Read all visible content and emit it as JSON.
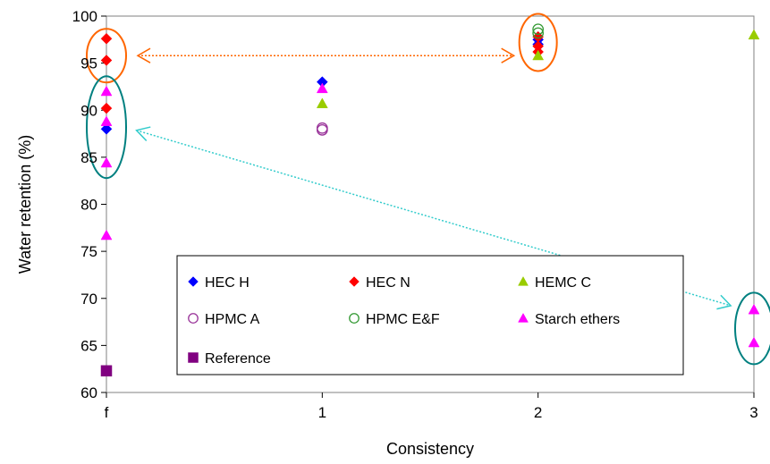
{
  "chart_data": {
    "type": "scatter",
    "xlabel": "Consistency",
    "ylabel": "Water retention (%)",
    "ylim": [
      60,
      100
    ],
    "yticks": [
      60,
      65,
      70,
      75,
      80,
      85,
      90,
      95,
      100
    ],
    "xlim": [
      0,
      3
    ],
    "xtick_labels": [
      "f",
      "1",
      "2",
      "3"
    ],
    "grid": false,
    "legend_position": "lower-center",
    "series": [
      {
        "name": "HEC H",
        "marker": "diamond",
        "color": "#0000ff",
        "filled": true,
        "points": [
          {
            "x": "f",
            "y": 88.0
          },
          {
            "x": "1",
            "y": 93.0
          },
          {
            "x": "2",
            "y": 97.0
          },
          {
            "x": "2",
            "y": 97.5
          }
        ]
      },
      {
        "name": "HEC N",
        "marker": "diamond",
        "color": "#ff0000",
        "filled": true,
        "points": [
          {
            "x": "f",
            "y": 97.6
          },
          {
            "x": "f",
            "y": 95.3
          },
          {
            "x": "f",
            "y": 90.2
          },
          {
            "x": "2",
            "y": 96.2
          },
          {
            "x": "2",
            "y": 97.8
          },
          {
            "x": "2",
            "y": 96.8
          }
        ]
      },
      {
        "name": "HEMC C",
        "marker": "triangle",
        "color": "#99cc00",
        "filled": true,
        "points": [
          {
            "x": "1",
            "y": 90.7
          },
          {
            "x": "2",
            "y": 95.8
          },
          {
            "x": "3",
            "y": 98.0
          }
        ]
      },
      {
        "name": "HPMC A",
        "marker": "circle",
        "color": "#993399",
        "filled": false,
        "points": [
          {
            "x": "1",
            "y": 88.1
          },
          {
            "x": "1",
            "y": 87.9
          }
        ]
      },
      {
        "name": "HPMC E&F",
        "marker": "circle",
        "color": "#339933",
        "filled": false,
        "points": [
          {
            "x": "2",
            "y": 98.6
          },
          {
            "x": "2",
            "y": 98.2
          }
        ]
      },
      {
        "name": "Starch ethers",
        "marker": "triangle",
        "color": "#ff00ff",
        "filled": true,
        "points": [
          {
            "x": "f",
            "y": 92.0
          },
          {
            "x": "f",
            "y": 88.8
          },
          {
            "x": "f",
            "y": 84.4
          },
          {
            "x": "f",
            "y": 76.7
          },
          {
            "x": "1",
            "y": 92.3
          },
          {
            "x": "3",
            "y": 68.8
          },
          {
            "x": "3",
            "y": 65.3
          }
        ]
      },
      {
        "name": "Reference",
        "marker": "square",
        "color": "#800080",
        "filled": true,
        "points": [
          {
            "x": "f",
            "y": 62.3
          }
        ]
      }
    ],
    "annotations": [
      {
        "type": "ellipse",
        "color": "#ff6600",
        "center": {
          "x": "f",
          "y": 95.8
        },
        "around": "HEC N at f"
      },
      {
        "type": "ellipse",
        "color": "#ff6600",
        "center": {
          "x": "2",
          "y": 97.2
        },
        "around": "cluster at 2"
      },
      {
        "type": "ellipse",
        "color": "#008080",
        "center": {
          "x": "f",
          "y": 88.2
        },
        "around": "cluster at f"
      },
      {
        "type": "ellipse",
        "color": "#008080",
        "center": {
          "x": "3",
          "y": 66.8
        },
        "around": "Starch ethers at 3"
      },
      {
        "type": "double-arrow",
        "style": "dotted",
        "color": "#ff6600",
        "from": {
          "x": "f",
          "y": 95.8
        },
        "to": {
          "x": "2",
          "y": 95.8
        }
      },
      {
        "type": "double-arrow",
        "style": "dotted",
        "color": "#33cccc",
        "from": {
          "x": "f",
          "y": 88.8
        },
        "to": {
          "x": "3",
          "y": 68.5
        }
      }
    ]
  }
}
